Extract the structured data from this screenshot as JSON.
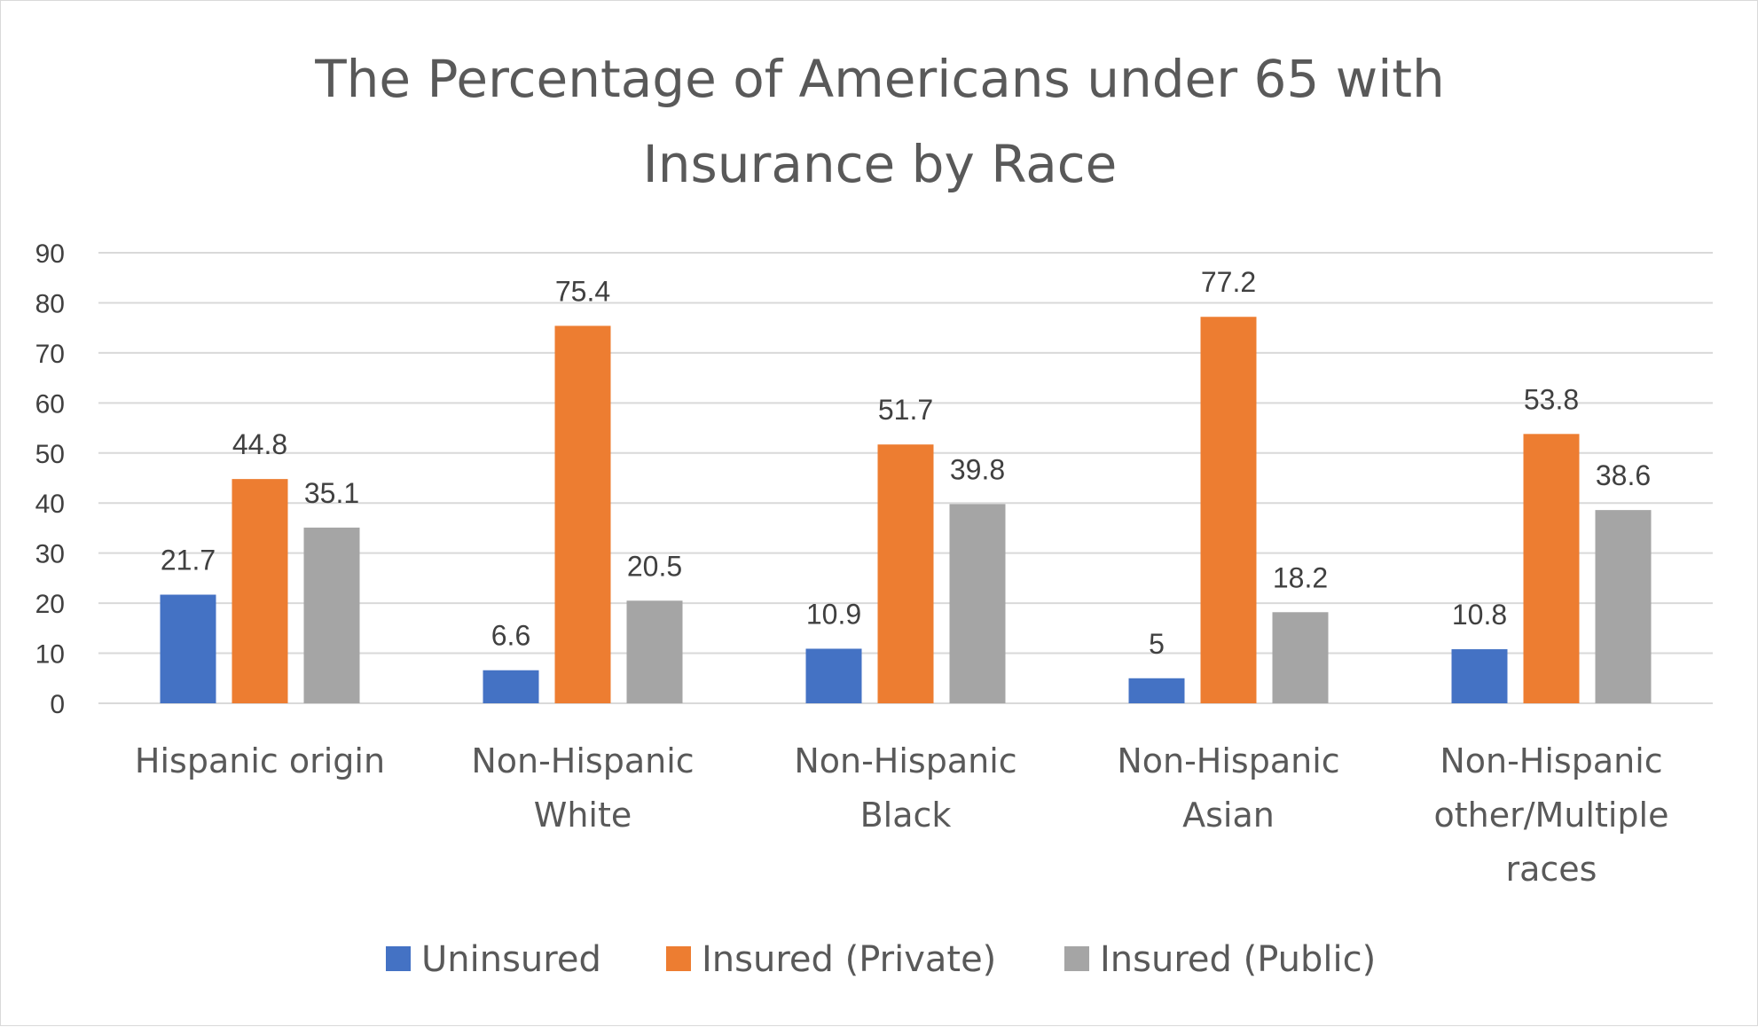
{
  "chart_data": {
    "type": "bar",
    "title_lines": [
      "The Percentage of Americans under 65 with",
      "Insurance by Race"
    ],
    "categories": [
      [
        "Hispanic origin"
      ],
      [
        "Non-Hispanic",
        "White"
      ],
      [
        "Non-Hispanic",
        "Black"
      ],
      [
        "Non-Hispanic",
        "Asian"
      ],
      [
        "Non-Hispanic",
        "other/Multiple",
        "races"
      ]
    ],
    "series": [
      {
        "name": "Uninsured",
        "color": "#4472c4",
        "values": [
          21.7,
          6.6,
          10.9,
          5,
          10.8
        ],
        "labels": [
          "21.7",
          "6.6",
          "10.9",
          "5",
          "10.8"
        ]
      },
      {
        "name": "Insured (Private)",
        "color": "#ed7d31",
        "values": [
          44.8,
          75.4,
          51.7,
          77.2,
          53.8
        ],
        "labels": [
          "44.8",
          "75.4",
          "51.7",
          "77.2",
          "53.8"
        ]
      },
      {
        "name": "Insured (Public)",
        "color": "#a5a5a5",
        "values": [
          35.1,
          20.5,
          39.8,
          18.2,
          38.6
        ],
        "labels": [
          "35.1",
          "20.5",
          "39.8",
          "18.2",
          "38.6"
        ]
      }
    ],
    "yticks": [
      "0",
      "10",
      "20",
      "30",
      "40",
      "50",
      "60",
      "70",
      "80",
      "90"
    ],
    "ylim": [
      0,
      90
    ],
    "xlabel": "",
    "ylabel": "",
    "grid": true,
    "legend_position": "bottom",
    "gridline_color": "#d9d9d9"
  }
}
